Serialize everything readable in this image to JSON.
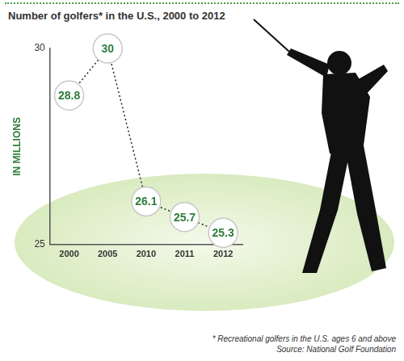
{
  "chart_data": {
    "type": "line",
    "title": "Number of golfers* in the U.S., 2000 to 2012",
    "y_label": "IN MILLIONS",
    "categories": [
      "2000",
      "2005",
      "2010",
      "2011",
      "2012"
    ],
    "values": [
      28.8,
      30,
      26.1,
      25.7,
      25.3
    ],
    "color": "#2e7d3a",
    "line_style": "dotted",
    "marker": "circle",
    "ylim": [
      25,
      30
    ],
    "yticks": [
      25,
      30
    ],
    "grid": false,
    "data_labels": true,
    "annotations": [
      "* Recreational golfers in the U.S. ages 6 and above",
      "Source: National Golf Foundation"
    ]
  }
}
